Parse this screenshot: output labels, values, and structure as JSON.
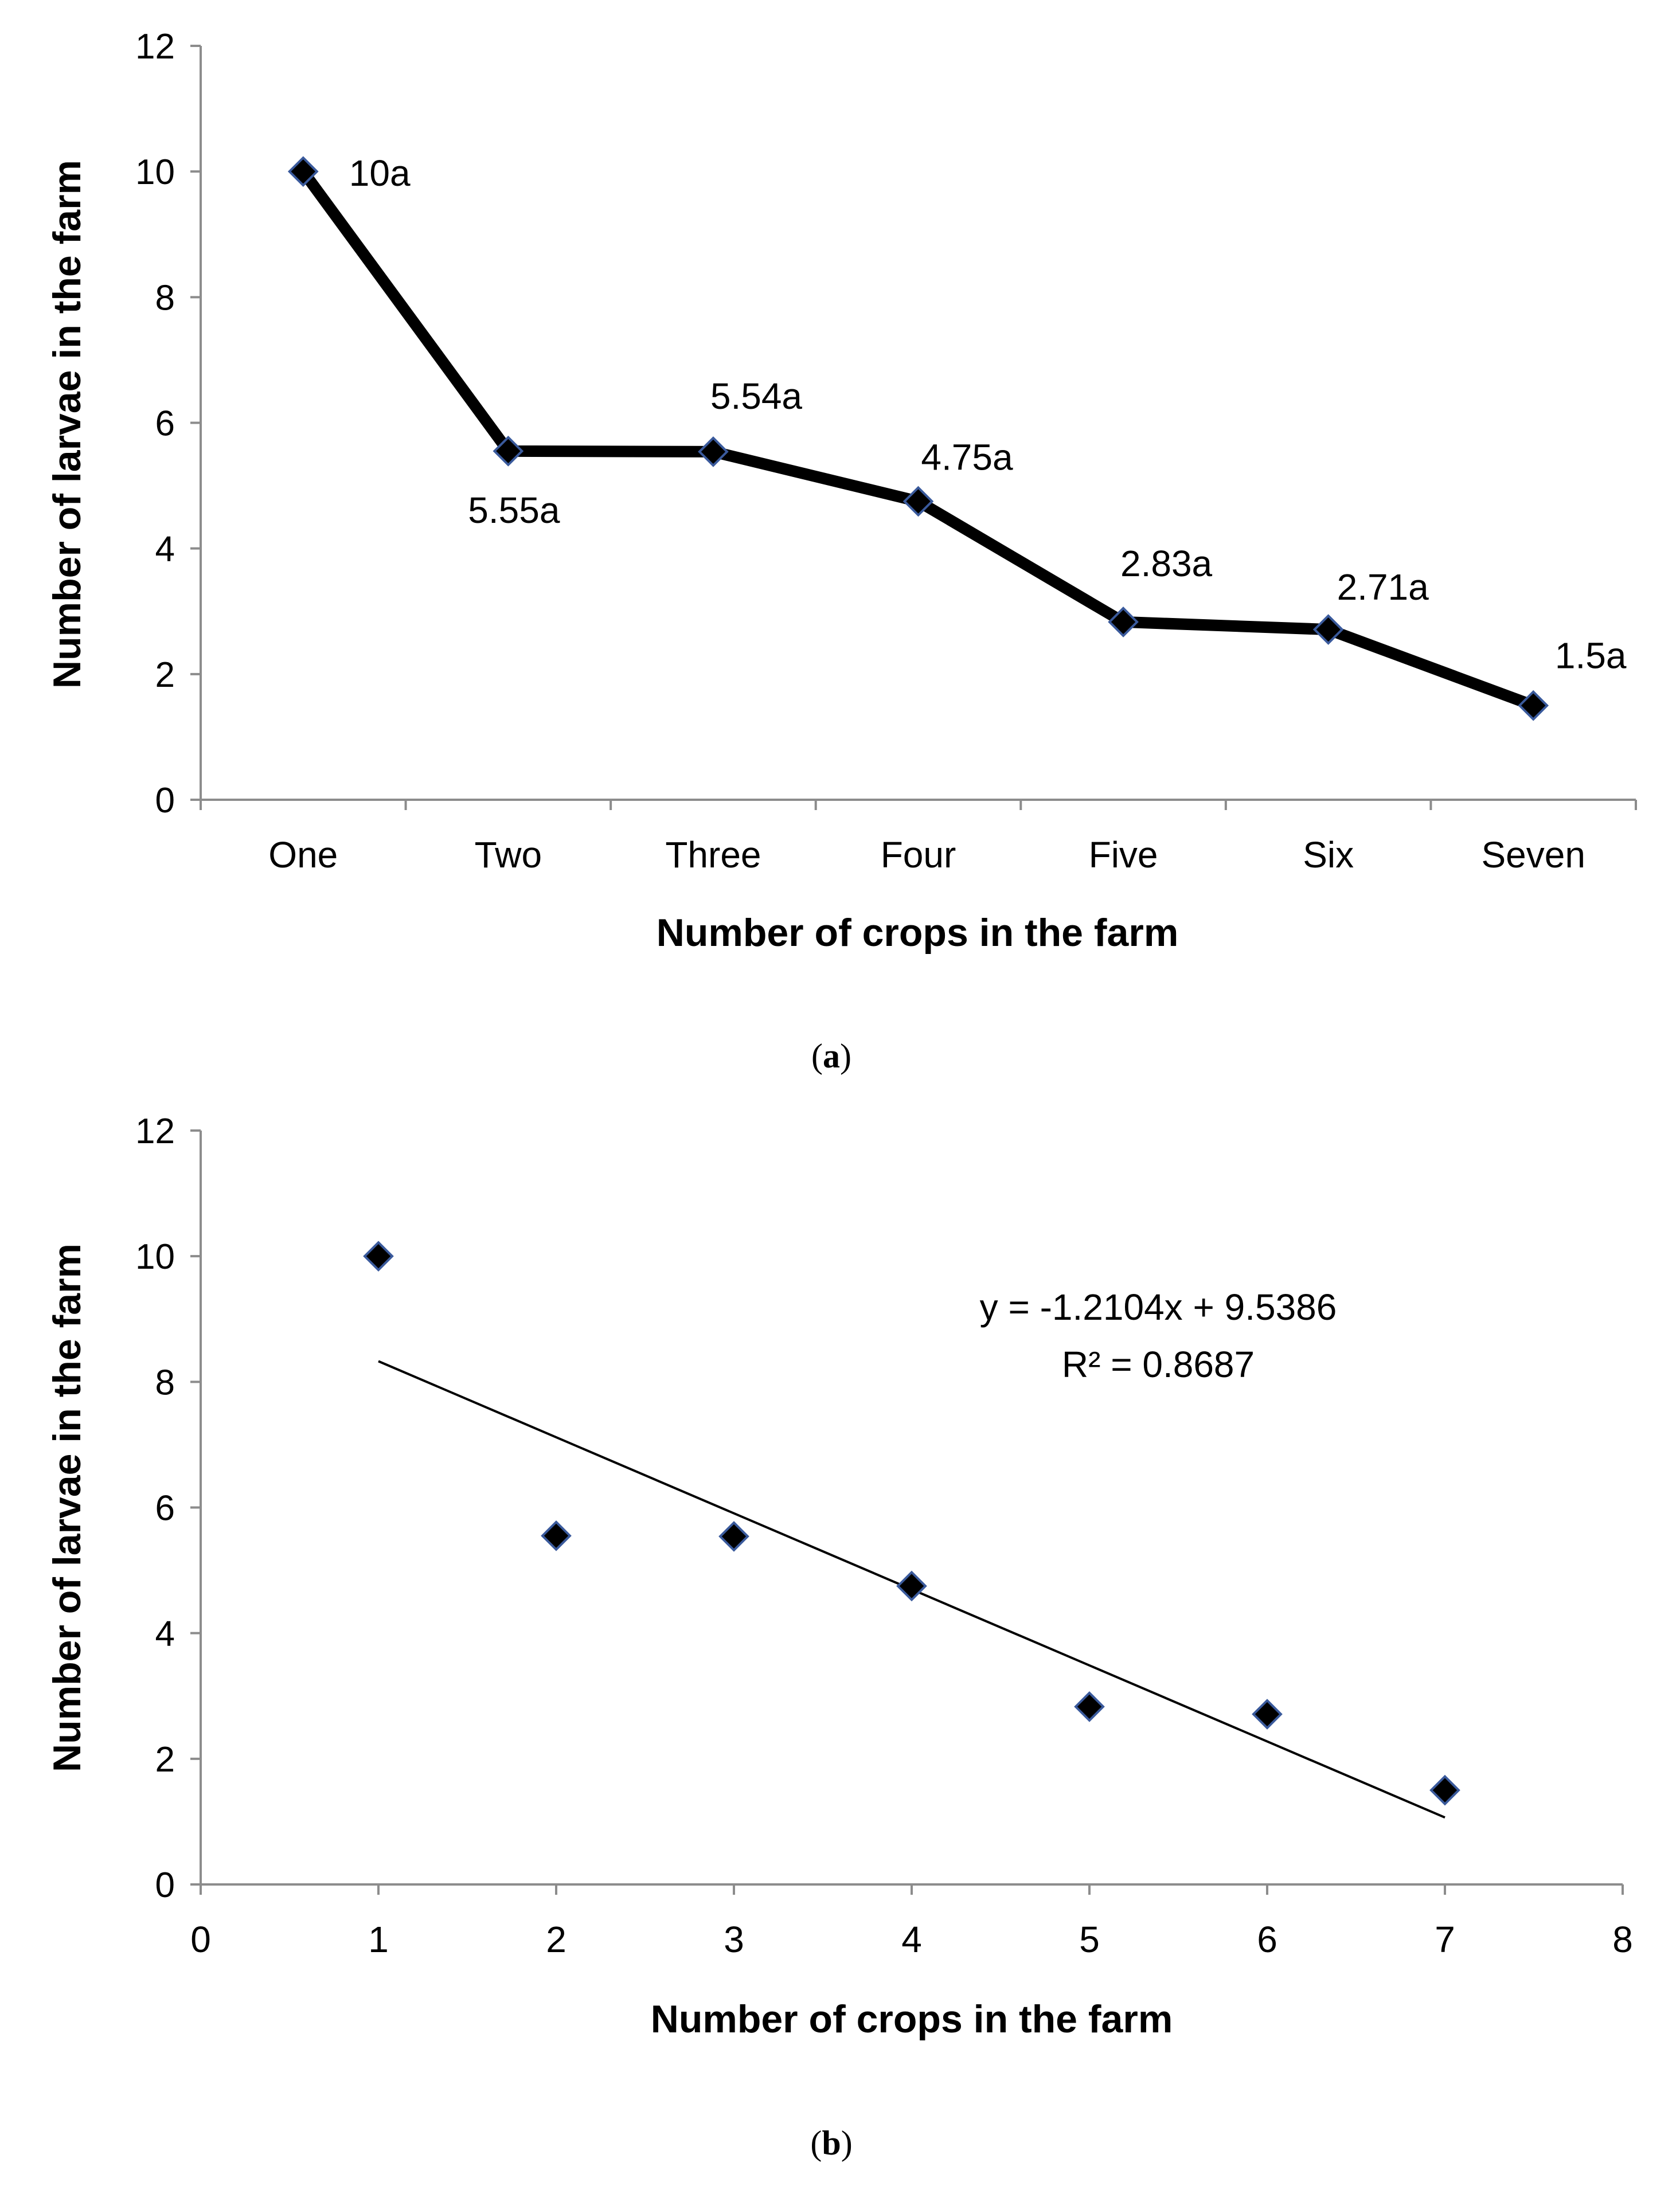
{
  "chart_data": [
    {
      "id": "a",
      "type": "line",
      "categories": [
        "One",
        "Two",
        "Three",
        "Four",
        "Five",
        "Six",
        "Seven"
      ],
      "values": [
        10,
        5.55,
        5.54,
        4.75,
        2.83,
        2.71,
        1.5
      ],
      "data_labels": [
        "10a",
        "5.55a",
        "5.54a",
        "4.75a",
        "2.83a",
        "2.71a",
        "1.5a"
      ],
      "xlabel": "Number of crops in the farm",
      "ylabel": "Number of larvae in the farm",
      "ylim": [
        0,
        12
      ],
      "yticks": [
        "0",
        "2",
        "4",
        "6",
        "8",
        "10",
        "12"
      ],
      "caption_letter": "a",
      "colors": {
        "line": "#000000",
        "marker_fill": "#000000",
        "marker_edge": "#3a5a9c"
      }
    },
    {
      "id": "b",
      "type": "scatter",
      "x": [
        1,
        2,
        3,
        4,
        5,
        6,
        7
      ],
      "y": [
        10,
        5.55,
        5.54,
        4.75,
        2.83,
        2.71,
        1.5
      ],
      "trendline": {
        "slope": -1.2104,
        "intercept": 9.5386,
        "equation": "y = -1.2104x + 9.5386",
        "r2": "R² = 0.8687"
      },
      "xlabel": "Number of crops in the farm",
      "ylabel": "Number of larvae in the farm",
      "xlim": [
        0,
        8
      ],
      "ylim": [
        0,
        12
      ],
      "xticks": [
        "0",
        "1",
        "2",
        "3",
        "4",
        "5",
        "6",
        "7",
        "8"
      ],
      "yticks": [
        "0",
        "2",
        "4",
        "6",
        "8",
        "10",
        "12"
      ],
      "caption_letter": "b",
      "colors": {
        "marker_fill": "#000000",
        "marker_edge": "#3a5a9c",
        "trendline": "#000000"
      }
    }
  ]
}
